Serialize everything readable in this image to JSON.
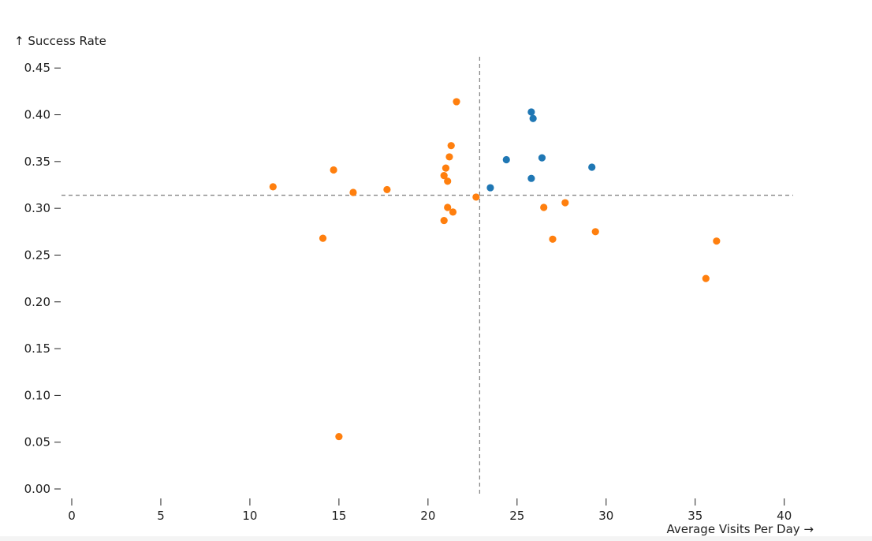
{
  "chart_data": {
    "type": "scatter",
    "xlabel": "Average Visits Per Day →",
    "ylabel": "↑ Success Rate",
    "xlim": [
      0,
      40.5
    ],
    "ylim": [
      0,
      0.462
    ],
    "xticks": [
      0,
      5,
      10,
      15,
      20,
      25,
      30,
      35,
      40
    ],
    "yticks": [
      0,
      0.05,
      0.1,
      0.15,
      0.2,
      0.25,
      0.3,
      0.35,
      0.4,
      0.45
    ],
    "xtick_labels": [
      "0",
      "5",
      "10",
      "15",
      "20",
      "25",
      "30",
      "35",
      "40"
    ],
    "ytick_labels": [
      "0.00",
      "0.05",
      "0.10",
      "0.15",
      "0.20",
      "0.25",
      "0.30",
      "0.35",
      "0.40",
      "0.45"
    ],
    "reference_lines": {
      "x": 22.9,
      "y": 0.314
    },
    "grid": false,
    "legend": "none",
    "colors": {
      "series_1": "#1f77b4",
      "series_2": "#ff7f0e",
      "reference": "#888888"
    },
    "series": [
      {
        "color": "#1f77b4",
        "points": [
          {
            "x": 25.8,
            "y": 0.403
          },
          {
            "x": 25.9,
            "y": 0.396
          },
          {
            "x": 24.4,
            "y": 0.352
          },
          {
            "x": 26.4,
            "y": 0.354
          },
          {
            "x": 29.2,
            "y": 0.344
          },
          {
            "x": 25.8,
            "y": 0.332
          },
          {
            "x": 23.5,
            "y": 0.322
          }
        ]
      },
      {
        "color": "#ff7f0e",
        "points": [
          {
            "x": 21.6,
            "y": 0.414
          },
          {
            "x": 21.3,
            "y": 0.367
          },
          {
            "x": 21.2,
            "y": 0.355
          },
          {
            "x": 21.0,
            "y": 0.343
          },
          {
            "x": 20.9,
            "y": 0.335
          },
          {
            "x": 21.1,
            "y": 0.329
          },
          {
            "x": 11.3,
            "y": 0.323
          },
          {
            "x": 14.7,
            "y": 0.341
          },
          {
            "x": 15.8,
            "y": 0.317
          },
          {
            "x": 17.7,
            "y": 0.32
          },
          {
            "x": 22.7,
            "y": 0.312
          },
          {
            "x": 21.1,
            "y": 0.301
          },
          {
            "x": 21.4,
            "y": 0.296
          },
          {
            "x": 20.9,
            "y": 0.287
          },
          {
            "x": 14.1,
            "y": 0.268
          },
          {
            "x": 26.5,
            "y": 0.301
          },
          {
            "x": 27.7,
            "y": 0.306
          },
          {
            "x": 27.0,
            "y": 0.267
          },
          {
            "x": 29.4,
            "y": 0.275
          },
          {
            "x": 36.2,
            "y": 0.265
          },
          {
            "x": 35.6,
            "y": 0.225
          },
          {
            "x": 15.0,
            "y": 0.056
          }
        ]
      }
    ]
  }
}
